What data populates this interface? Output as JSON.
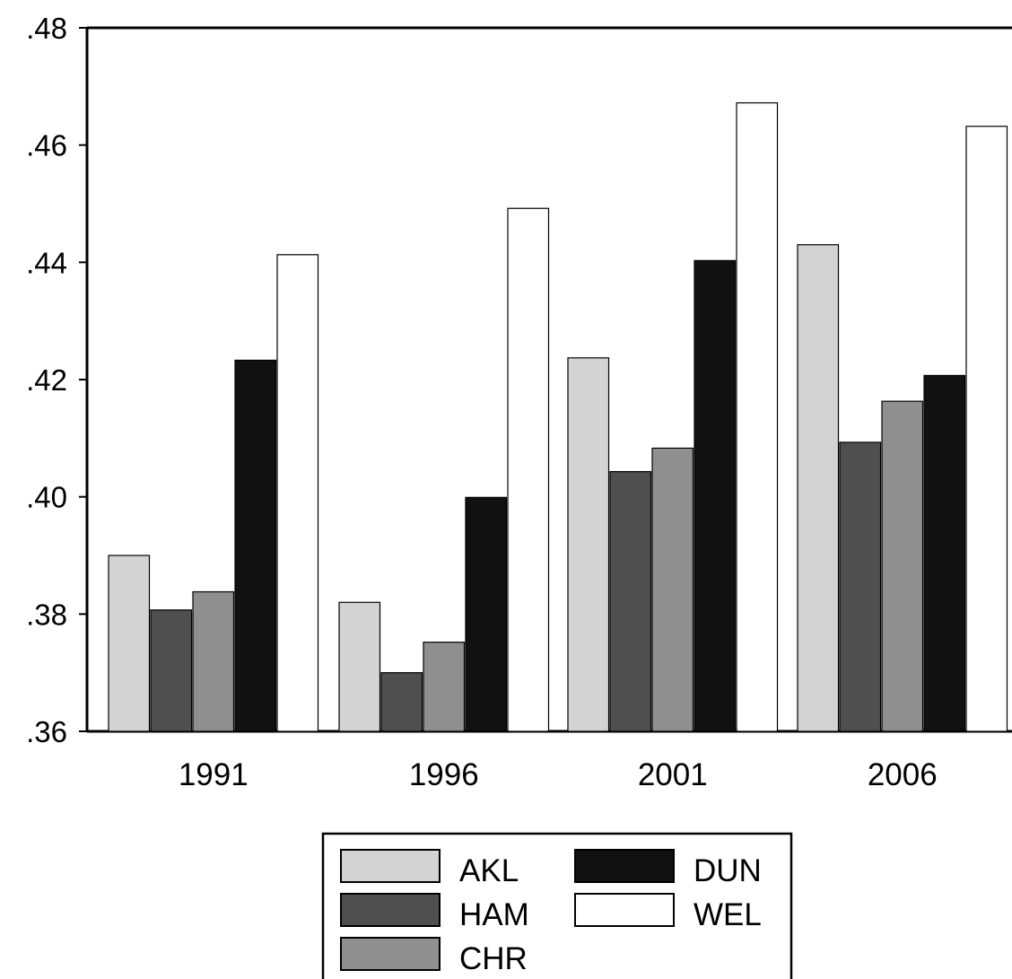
{
  "chart_data": {
    "type": "bar",
    "title": "",
    "xlabel": "",
    "ylabel": "",
    "categories": [
      "1991",
      "1996",
      "2001",
      "2006"
    ],
    "ylim": [
      0.36,
      0.48
    ],
    "yticks": [
      0.36,
      0.38,
      0.4,
      0.42,
      0.44,
      0.46,
      0.48
    ],
    "ytick_labels": [
      ".36",
      ".38",
      ".40",
      ".42",
      ".44",
      ".46",
      ".48"
    ],
    "grid": false,
    "legend_position": "bottom-center",
    "series": [
      {
        "name": "AKL",
        "color": "#d3d3d3",
        "values": [
          0.39,
          0.382,
          0.4237,
          0.443
        ]
      },
      {
        "name": "HAM",
        "color": "#4f4f4f",
        "values": [
          0.3807,
          0.37,
          0.4043,
          0.4093
        ]
      },
      {
        "name": "CHR",
        "color": "#8f8f8f",
        "values": [
          0.3838,
          0.3752,
          0.4083,
          0.4163
        ]
      },
      {
        "name": "DUN",
        "color": "#111111",
        "values": [
          0.4233,
          0.3999,
          0.4403,
          0.4207
        ]
      },
      {
        "name": "WEL",
        "color": "#ffffff",
        "values": [
          0.4413,
          0.4492,
          0.4672,
          0.4632
        ]
      }
    ]
  }
}
